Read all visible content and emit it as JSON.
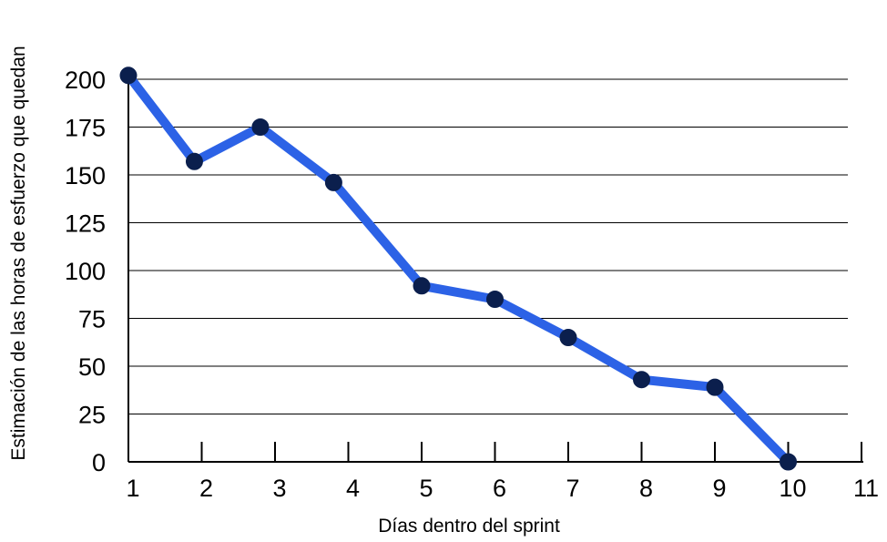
{
  "chart_data": {
    "type": "line",
    "title": "",
    "xlabel": "Días dentro del sprint",
    "ylabel": "Estimación de las horas de esfuerzo que quedan",
    "xlim": [
      1,
      11
    ],
    "ylim": [
      0,
      200
    ],
    "x_ticks": [
      1,
      2,
      3,
      4,
      5,
      6,
      7,
      8,
      9,
      10,
      11
    ],
    "y_ticks": [
      0,
      25,
      50,
      75,
      100,
      125,
      150,
      175,
      200
    ],
    "grid": "horizontal",
    "legend": "none",
    "colors": {
      "line": "#2c62e6",
      "marker": "#0b1f4d",
      "grid": "#000000",
      "axis": "#000000"
    },
    "series": [
      {
        "x": [
          1,
          1.9,
          2.8,
          3.8,
          5.0,
          6.0,
          7.0,
          8.0,
          9.0,
          10.0
        ],
        "values": [
          202,
          157,
          175,
          146,
          92,
          85,
          65,
          43,
          39,
          0
        ]
      }
    ]
  }
}
